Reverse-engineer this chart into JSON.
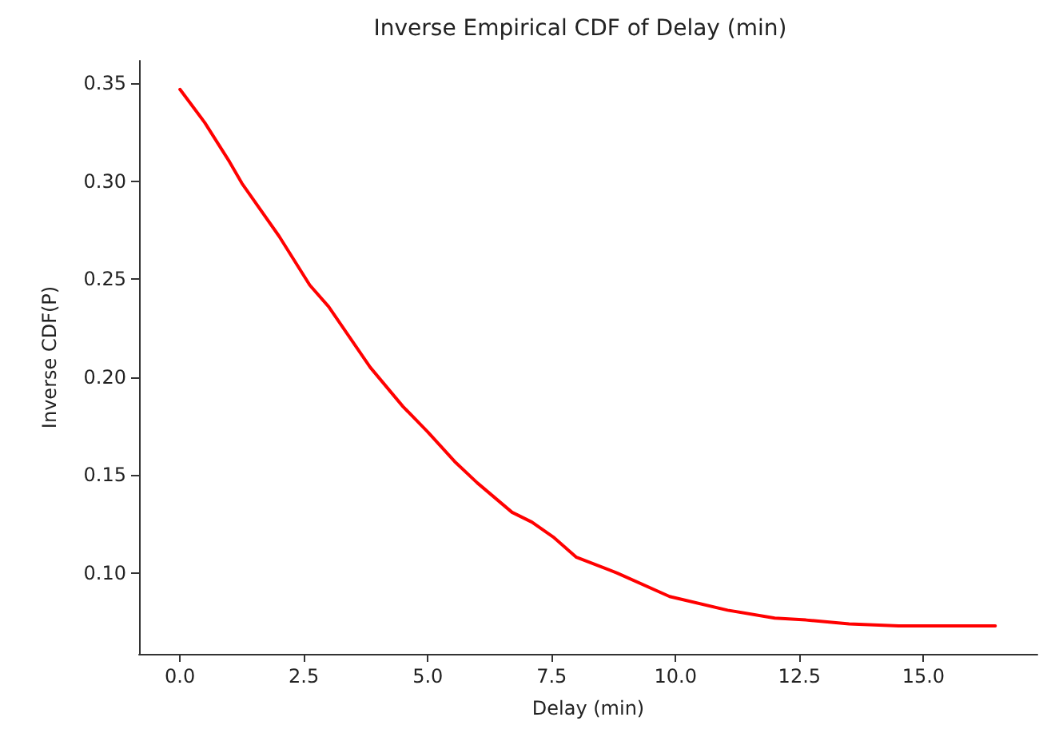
{
  "chart_data": {
    "type": "line",
    "title": "Inverse Empirical CDF of Delay (min)",
    "xlabel": "Delay (min)",
    "ylabel": "Inverse CDF(P)",
    "x": [
      0,
      0.5,
      1,
      1.25,
      1.5,
      2,
      2.62,
      3,
      3.84,
      4.5,
      5,
      5.54,
      6,
      6.7,
      7.1,
      7.55,
      8,
      8.82,
      9.88,
      11.05,
      12,
      12.63,
      13.5,
      14.5,
      15.5,
      16.45
    ],
    "series": [
      {
        "color": "#ff0000",
        "values": [
          0.347,
          0.33,
          0.31,
          0.299,
          0.29,
          0.272,
          0.247,
          0.236,
          0.205,
          0.185,
          0.172,
          0.157,
          0.146,
          0.131,
          0.126,
          0.118,
          0.108,
          0.1,
          0.088,
          0.081,
          0.077,
          0.076,
          0.074,
          0.073,
          0.073,
          0.073
        ]
      }
    ],
    "xlim": [
      -0.825,
      17.3
    ],
    "ylim": [
      0.0587,
      0.3616
    ],
    "xticks": [
      {
        "value": 0,
        "label": "0.0"
      },
      {
        "value": 2.5,
        "label": "2.5"
      },
      {
        "value": 5,
        "label": "5.0"
      },
      {
        "value": 7.5,
        "label": "7.5"
      },
      {
        "value": 10,
        "label": "10.0"
      },
      {
        "value": 12.5,
        "label": "12.5"
      },
      {
        "value": 15,
        "label": "15.0"
      }
    ],
    "yticks": [
      {
        "value": 0.1,
        "label": "0.10"
      },
      {
        "value": 0.15,
        "label": "0.15"
      },
      {
        "value": 0.2,
        "label": "0.20"
      },
      {
        "value": 0.25,
        "label": "0.25"
      },
      {
        "value": 0.3,
        "label": "0.30"
      },
      {
        "value": 0.35,
        "label": "0.35"
      }
    ],
    "marker": "none",
    "line_style": "solid"
  }
}
